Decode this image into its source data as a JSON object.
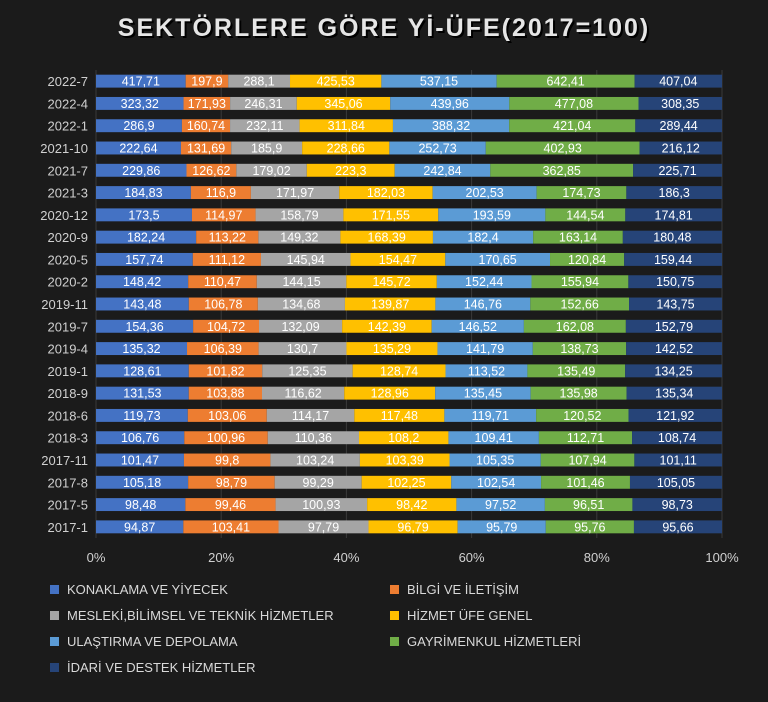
{
  "chart_data": {
    "type": "bar",
    "orientation": "horizontal",
    "stacked": "percent",
    "title": "SEKTÖRLERE GÖRE Yİ-ÜFE(2017=100)",
    "categories": [
      "2022-7",
      "2022-4",
      "2022-1",
      "2021-10",
      "2021-7",
      "2021-3",
      "2020-12",
      "2020-9",
      "2020-5",
      "2020-2",
      "2019-11",
      "2019-7",
      "2019-4",
      "2019-1",
      "2018-9",
      "2018-6",
      "2018-3",
      "2017-11",
      "2017-8",
      "2017-5",
      "2017-1"
    ],
    "x_ticks": [
      "0%",
      "20%",
      "40%",
      "60%",
      "80%",
      "100%"
    ],
    "xlim": [
      0,
      100
    ],
    "legend_position": "bottom",
    "series": [
      {
        "name": "KONAKLAMA VE YİYECEK",
        "color": "#4472c4",
        "values": [
          417.71,
          323.32,
          286.9,
          222.64,
          229.86,
          184.83,
          173.5,
          182.24,
          157.74,
          148.42,
          143.48,
          154.36,
          135.32,
          128.61,
          131.53,
          119.73,
          106.76,
          101.47,
          105.18,
          98.48,
          94.87
        ]
      },
      {
        "name": "BİLGİ VE İLETİŞİM",
        "color": "#ed7d31",
        "values": [
          197.9,
          171.93,
          160.74,
          131.69,
          126.62,
          116.9,
          114.97,
          113.22,
          111.12,
          110.47,
          106.78,
          104.72,
          106.39,
          101.82,
          103.88,
          103.06,
          100.96,
          99.8,
          98.79,
          99.46,
          103.41
        ]
      },
      {
        "name": "MESLEKİ,BİLİMSEL VE TEKNİK HİZMETLER",
        "color": "#a5a5a5",
        "values": [
          288.1,
          246.31,
          232.11,
          185.9,
          179.02,
          171.97,
          158.79,
          149.32,
          145.94,
          144.15,
          134.68,
          132.09,
          130.7,
          125.35,
          116.62,
          114.17,
          110.36,
          103.24,
          99.29,
          100.93,
          97.79
        ]
      },
      {
        "name": "HİZMET ÜFE GENEL",
        "color": "#ffc000",
        "values": [
          425.53,
          345.06,
          311.84,
          228.66,
          223.3,
          182.03,
          171.55,
          168.39,
          154.47,
          145.72,
          139.87,
          142.39,
          135.29,
          128.74,
          128.96,
          117.48,
          108.2,
          103.39,
          102.25,
          98.42,
          96.79
        ]
      },
      {
        "name": "ULAŞTIRMA VE DEPOLAMA",
        "color": "#5b9bd5",
        "values": [
          537.15,
          439.96,
          388.32,
          252.73,
          242.84,
          202.53,
          193.59,
          182.4,
          170.65,
          152.44,
          146.76,
          146.52,
          141.79,
          113.52,
          135.45,
          119.71,
          109.41,
          105.35,
          102.54,
          97.52,
          95.79
        ]
      },
      {
        "name": "GAYRİMENKUL HİZMETLERİ",
        "color": "#70ad47",
        "values": [
          642.41,
          477.08,
          421.04,
          402.93,
          362.85,
          174.73,
          144.54,
          163.14,
          120.84,
          155.94,
          152.66,
          162.08,
          138.73,
          135.49,
          135.98,
          120.52,
          112.71,
          107.94,
          101.46,
          96.51,
          95.76
        ]
      },
      {
        "name": "İDARİ VE DESTEK HİZMETLER",
        "color": "#264478",
        "values": [
          407.04,
          308.35,
          289.44,
          216.12,
          225.71,
          186.3,
          174.81,
          180.48,
          159.44,
          150.75,
          143.75,
          152.79,
          142.52,
          134.25,
          135.34,
          121.92,
          108.74,
          101.11,
          105.05,
          98.73,
          95.66
        ]
      }
    ],
    "data_labels": [
      [
        "417,71",
        "323,32",
        "286,9",
        "222,64",
        "229,86",
        "184,83",
        "173,5",
        "182,24",
        "157,74",
        "148,42",
        "143,48",
        "154,36",
        "135,32",
        "128,61",
        "131,53",
        "119,73",
        "106,76",
        "101,47",
        "105,18",
        "98,48",
        "94,87"
      ],
      [
        "197,9",
        "171,93",
        "160,74",
        "131,69",
        "126,62",
        "116,9",
        "114,97",
        "113,22",
        "111,12",
        "110,47",
        "106,78",
        "104,72",
        "106,39",
        "101,82",
        "103,88",
        "103,06",
        "100,96",
        "99,8",
        "98,79",
        "99,46",
        "103,41"
      ],
      [
        "288,1",
        "246,31",
        "232,11",
        "185,9",
        "179,02",
        "171,97",
        "158,79",
        "149,32",
        "145,94",
        "144,15",
        "134,68",
        "132,09",
        "130,7",
        "125,35",
        "116,62",
        "114,17",
        "110,36",
        "103,24",
        "99,29",
        "100,93",
        "97,79"
      ],
      [
        "425,53",
        "345,06",
        "311,84",
        "228,66",
        "223,3",
        "182,03",
        "171,55",
        "168,39",
        "154,47",
        "145,72",
        "139,87",
        "142,39",
        "135,29",
        "128,74",
        "128,96",
        "117,48",
        "108,2",
        "103,39",
        "102,25",
        "98,42",
        "96,79"
      ],
      [
        "537,15",
        "439,96",
        "388,32",
        "252,73",
        "242,84",
        "202,53",
        "193,59",
        "182,4",
        "170,65",
        "152,44",
        "146,76",
        "146,52",
        "141,79",
        "113,52",
        "135,45",
        "119,71",
        "109,41",
        "105,35",
        "102,54",
        "97,52",
        "95,79"
      ],
      [
        "642,41",
        "477,08",
        "421,04",
        "402,93",
        "362,85",
        "174,73",
        "144,54",
        "163,14",
        "120,84",
        "155,94",
        "152,66",
        "162,08",
        "138,73",
        "135,49",
        "135,98",
        "120,52",
        "112,71",
        "107,94",
        "101,46",
        "96,51",
        "95,76"
      ],
      [
        "407,04",
        "308,35",
        "289,44",
        "216,12",
        "225,71",
        "186,3",
        "174,81",
        "180,48",
        "159,44",
        "150,75",
        "143,75",
        "152,79",
        "142,52",
        "134,25",
        "135,34",
        "121,92",
        "108,74",
        "101,11",
        "105,05",
        "98,73",
        "95,66"
      ]
    ]
  }
}
